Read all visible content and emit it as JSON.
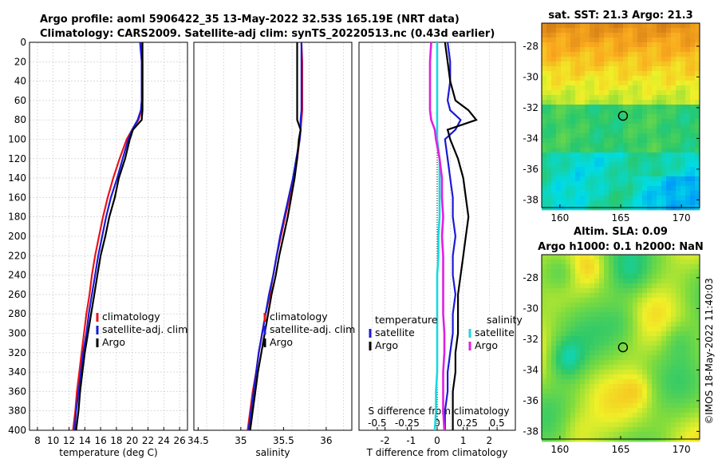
{
  "titles": {
    "line1": "Argo profile: aoml 5906422_35 13-May-2022 32.53S 165.19E (NRT data)",
    "line2": "Climatology: CARS2009. Satellite-adj clim: synTS_20220513.nc (0.43d earlier)",
    "sst": "sat. SST: 21.3 Argo: 21.3",
    "sla1": "Altim. SLA: 0.09",
    "sla2": "Argo h1000: 0.1 h2000: NaN",
    "stamp": "©IMOS 18-May-2022 11:40:03"
  },
  "colors": {
    "climatology": "#e8141b",
    "satellite": "#1a1ad6",
    "argo": "#000000",
    "sal_sat": "#18d8e0",
    "sal_argo": "#e020e0"
  },
  "chart_data": [
    {
      "type": "line",
      "name": "temperature-profile",
      "xlabel": "temperature (deg C)",
      "ylim": [
        0,
        400
      ],
      "xlim": [
        7,
        27
      ],
      "xticks": [
        8,
        10,
        12,
        14,
        16,
        18,
        20,
        22,
        24,
        26
      ],
      "yticks": [
        0,
        20,
        40,
        60,
        80,
        100,
        120,
        140,
        160,
        180,
        200,
        220,
        240,
        260,
        280,
        300,
        320,
        340,
        360,
        380,
        400
      ],
      "depth": [
        0,
        20,
        40,
        60,
        70,
        80,
        90,
        100,
        120,
        140,
        160,
        180,
        200,
        220,
        240,
        260,
        280,
        300,
        320,
        340,
        360,
        380,
        400
      ],
      "series": [
        {
          "name": "climatology",
          "color": "#e8141b",
          "values": [
            21.2,
            21.3,
            21.3,
            21.3,
            21.2,
            20.8,
            20.0,
            19.3,
            18.4,
            17.6,
            16.9,
            16.3,
            15.8,
            15.3,
            14.9,
            14.6,
            14.2,
            13.9,
            13.6,
            13.3,
            13.0,
            12.8,
            12.5
          ]
        },
        {
          "name": "satellite-adj. clim",
          "color": "#1a1ad6",
          "values": [
            21.0,
            21.2,
            21.2,
            21.2,
            21.1,
            20.7,
            20.0,
            19.5,
            18.8,
            18.1,
            17.3,
            16.7,
            16.2,
            15.7,
            15.3,
            14.9,
            14.5,
            14.2,
            13.8,
            13.5,
            13.2,
            12.9,
            12.7
          ]
        },
        {
          "name": "Argo",
          "color": "#000000",
          "values": [
            21.3,
            21.3,
            21.3,
            21.3,
            21.3,
            21.2,
            20.1,
            19.7,
            19.1,
            18.3,
            17.8,
            17.1,
            16.6,
            16.0,
            15.6,
            15.2,
            14.8,
            14.4,
            14.0,
            13.7,
            13.4,
            13.2,
            12.9
          ]
        }
      ],
      "legend": [
        "climatology",
        "satellite-adj. clim",
        "Argo"
      ]
    },
    {
      "type": "line",
      "name": "salinity-profile",
      "xlabel": "salinity",
      "ylim": [
        0,
        400
      ],
      "xlim": [
        34.45,
        36.3
      ],
      "xticks": [
        34.5,
        35,
        35.5,
        36
      ],
      "xticklabels": [
        "34.5",
        "35",
        "35.5",
        "36"
      ],
      "depth": [
        0,
        20,
        40,
        60,
        70,
        80,
        90,
        100,
        120,
        140,
        160,
        180,
        200,
        220,
        240,
        260,
        280,
        300,
        320,
        340,
        360,
        380,
        400
      ],
      "series": [
        {
          "name": "climatology",
          "color": "#e8141b",
          "values": [
            35.71,
            35.72,
            35.72,
            35.72,
            35.72,
            35.71,
            35.7,
            35.69,
            35.66,
            35.62,
            35.57,
            35.52,
            35.47,
            35.42,
            35.38,
            35.34,
            35.29,
            35.25,
            35.21,
            35.18,
            35.14,
            35.11,
            35.08
          ]
        },
        {
          "name": "satellite-adj. clim",
          "color": "#1a1ad6",
          "values": [
            35.71,
            35.71,
            35.71,
            35.71,
            35.71,
            35.7,
            35.7,
            35.69,
            35.65,
            35.61,
            35.56,
            35.51,
            35.46,
            35.42,
            35.38,
            35.33,
            35.29,
            35.25,
            35.21,
            35.18,
            35.15,
            35.12,
            35.09
          ]
        },
        {
          "name": "Argo",
          "color": "#000000",
          "values": [
            35.66,
            35.66,
            35.66,
            35.66,
            35.66,
            35.66,
            35.7,
            35.68,
            35.66,
            35.63,
            35.59,
            35.55,
            35.5,
            35.45,
            35.41,
            35.36,
            35.32,
            35.28,
            35.24,
            35.2,
            35.17,
            35.14,
            35.11
          ]
        }
      ],
      "legend": [
        "climatology",
        "satellite-adj. clim",
        "Argo"
      ]
    },
    {
      "type": "line",
      "name": "difference-profile",
      "xlabel": "T difference from climatology",
      "xlabel_top": "S difference from climatology",
      "ylim": [
        0,
        400
      ],
      "xlim": [
        -3,
        3
      ],
      "xticks": [
        -2,
        -1,
        0,
        1,
        2
      ],
      "s_ticks": [
        -0.5,
        -0.25,
        0,
        0.25,
        0.5
      ],
      "s_ticklabels": [
        "-0.5",
        "-0.25",
        "0",
        "0.25",
        "0.5"
      ],
      "depth": [
        0,
        20,
        40,
        60,
        70,
        80,
        90,
        100,
        120,
        140,
        160,
        180,
        200,
        220,
        240,
        260,
        280,
        300,
        320,
        340,
        360,
        380,
        400
      ],
      "series": [
        {
          "name": "temperature satellite",
          "color": "#1a1ad6",
          "values": [
            0.4,
            0.5,
            0.5,
            0.4,
            0.5,
            0.9,
            0.7,
            0.3,
            0.4,
            0.5,
            0.6,
            0.6,
            0.7,
            0.6,
            0.6,
            0.7,
            0.6,
            0.6,
            0.5,
            0.4,
            0.4,
            0.3,
            0.3
          ]
        },
        {
          "name": "temperature Argo",
          "color": "#000000",
          "values": [
            0.3,
            0.4,
            0.5,
            0.7,
            1.2,
            1.5,
            0.4,
            0.5,
            0.8,
            1.0,
            1.1,
            1.2,
            1.1,
            1.0,
            0.9,
            0.8,
            0.8,
            0.8,
            0.7,
            0.7,
            0.6,
            0.6,
            0.6
          ]
        },
        {
          "name": "salinity satellite",
          "color": "#18d8e0",
          "values": [
            0.0,
            0.0,
            0.0,
            0.0,
            0.0,
            0.0,
            0.0,
            0.0,
            0.02,
            0.02,
            0.02,
            0.02,
            0.01,
            0.01,
            0.0,
            0.0,
            0.0,
            0.0,
            0.0,
            0.0,
            -0.01,
            -0.01,
            -0.02
          ]
        },
        {
          "name": "salinity Argo",
          "color": "#e020e0",
          "values": [
            -0.05,
            -0.06,
            -0.06,
            -0.06,
            -0.06,
            -0.05,
            -0.02,
            -0.01,
            0.02,
            0.04,
            0.04,
            0.05,
            0.04,
            0.05,
            0.05,
            0.05,
            0.05,
            0.06,
            0.06,
            0.05,
            0.05,
            0.05,
            0.06
          ]
        }
      ],
      "legend_temperature": {
        "title": "temperature",
        "items": [
          "satellite",
          "Argo"
        ]
      },
      "legend_salinity": {
        "title": "salinity",
        "items": [
          "satellite",
          "Argo"
        ]
      }
    },
    {
      "type": "heatmap",
      "name": "sst-map",
      "title": "sat. SST: 21.3 Argo: 21.3",
      "xticks": [
        160,
        165,
        170
      ],
      "yticks": [
        -28,
        -30,
        -32,
        -34,
        -36,
        -38
      ],
      "marker": {
        "lon": 165.19,
        "lat": -32.53
      }
    },
    {
      "type": "heatmap",
      "name": "sla-map",
      "title": "Altim. SLA: 0.09 / Argo h1000: 0.1 h2000: NaN",
      "xticks": [
        160,
        165,
        170
      ],
      "yticks": [
        -28,
        -30,
        -32,
        -34,
        -36,
        -38
      ],
      "marker": {
        "lon": 165.19,
        "lat": -32.53
      }
    }
  ]
}
